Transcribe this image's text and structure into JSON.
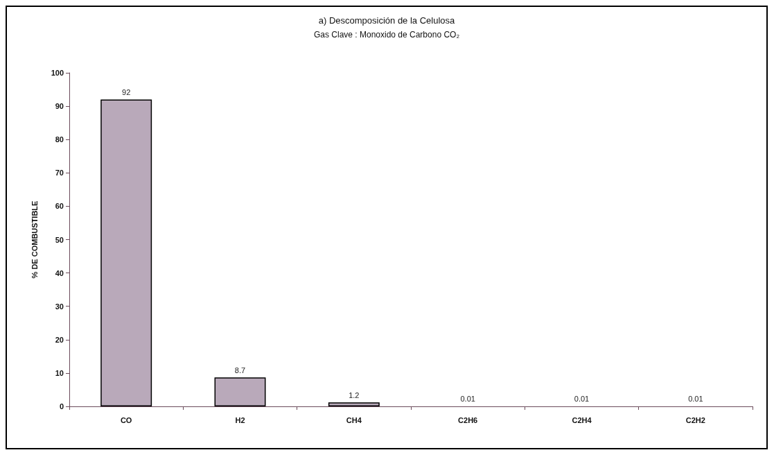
{
  "chart_data": {
    "type": "bar",
    "title": "a) Descomposición de la Celulosa",
    "subtitle": "Gas Clave : Monoxido de Carbono CO₂",
    "ylabel": "% DE COMBUSTIBLE",
    "categories": [
      "CO",
      "H2",
      "CH4",
      "C2H6",
      "C2H4",
      "C2H2"
    ],
    "values": [
      92,
      8.7,
      1.2,
      0.01,
      0.01,
      0.01
    ],
    "color": "#b9a9ba",
    "ylim": [
      0,
      100
    ],
    "yticks": [
      0,
      10,
      20,
      30,
      40,
      50,
      60,
      70,
      80,
      90,
      100
    ],
    "grid": false,
    "data_labels": true
  }
}
